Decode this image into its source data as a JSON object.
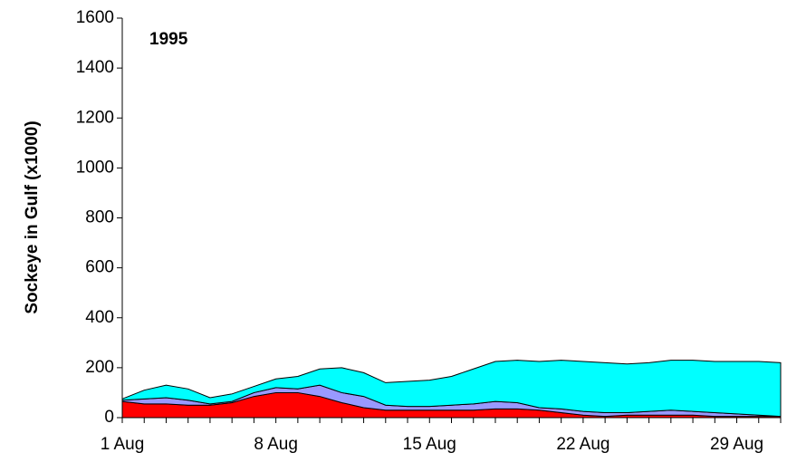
{
  "chart_data": {
    "type": "stacked-area",
    "annotation": "1995",
    "y_label": "Sockeye in Gulf (x1000)",
    "categories": [
      "1 Aug",
      null,
      null,
      null,
      null,
      null,
      null,
      "8 Aug",
      null,
      null,
      null,
      null,
      null,
      null,
      "15 Aug",
      null,
      null,
      null,
      null,
      null,
      null,
      "22 Aug",
      null,
      null,
      null,
      null,
      null,
      null,
      "29 Aug",
      null,
      null
    ],
    "series": [
      {
        "name": null,
        "color": "#ff0000",
        "values": [
          65,
          55,
          55,
          50,
          50,
          60,
          85,
          100,
          100,
          85,
          60,
          40,
          30,
          30,
          30,
          30,
          30,
          35,
          35,
          30,
          20,
          10,
          5,
          10,
          10,
          10,
          10,
          5,
          5,
          5,
          5
        ]
      },
      {
        "name": null,
        "color": "#9999ff",
        "values": [
          5,
          20,
          25,
          20,
          5,
          5,
          15,
          20,
          15,
          45,
          40,
          45,
          20,
          15,
          15,
          20,
          25,
          30,
          25,
          10,
          15,
          15,
          15,
          10,
          15,
          20,
          15,
          15,
          10,
          5,
          0
        ]
      },
      {
        "name": null,
        "color": "#00ffff",
        "values": [
          5,
          35,
          50,
          45,
          25,
          30,
          25,
          35,
          50,
          65,
          100,
          95,
          90,
          100,
          105,
          115,
          140,
          160,
          170,
          185,
          195,
          200,
          200,
          195,
          195,
          200,
          205,
          205,
          210,
          215,
          215
        ]
      }
    ],
    "ylim": [
      0,
      1600
    ],
    "yticks": [
      0,
      200,
      400,
      600,
      800,
      1000,
      1200,
      1400,
      1600
    ],
    "grid": false
  }
}
